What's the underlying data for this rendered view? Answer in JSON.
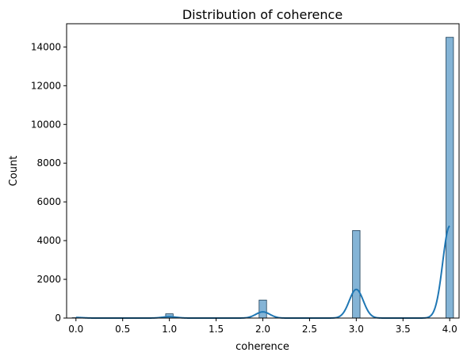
{
  "chart_data": {
    "type": "bar",
    "title": "Distribution of coherence",
    "xlabel": "coherence",
    "ylabel": "Count",
    "xlim": [
      -0.1,
      4.1
    ],
    "ylim": [
      0,
      15200
    ],
    "x_ticks": [
      0.0,
      0.5,
      1.0,
      1.5,
      2.0,
      2.5,
      3.0,
      3.5,
      4.0
    ],
    "x_tick_labels": [
      "0.0",
      "0.5",
      "1.0",
      "1.5",
      "2.0",
      "2.5",
      "3.0",
      "3.5",
      "4.0"
    ],
    "y_ticks": [
      0,
      2000,
      4000,
      6000,
      8000,
      10000,
      12000,
      14000
    ],
    "y_tick_labels": [
      "0",
      "2000",
      "4000",
      "6000",
      "8000",
      "10000",
      "12000",
      "14000"
    ],
    "grid": false,
    "bar_color": "#1f77b4",
    "line_color": "#1f77b4",
    "series": [
      {
        "kind": "histogram",
        "bin_width": 0.08,
        "bins": [
          {
            "x": 0.0,
            "value": 20
          },
          {
            "x": 1.0,
            "value": 220
          },
          {
            "x": 2.0,
            "value": 930
          },
          {
            "x": 3.0,
            "value": 4520
          },
          {
            "x": 4.0,
            "value": 14500
          }
        ]
      },
      {
        "kind": "kde",
        "peaks": [
          {
            "x": 0.0,
            "value": 30
          },
          {
            "x": 1.0,
            "value": 70
          },
          {
            "x": 2.0,
            "value": 320
          },
          {
            "x": 3.0,
            "value": 1480
          },
          {
            "x": 4.0,
            "value": 4750
          }
        ]
      }
    ]
  }
}
